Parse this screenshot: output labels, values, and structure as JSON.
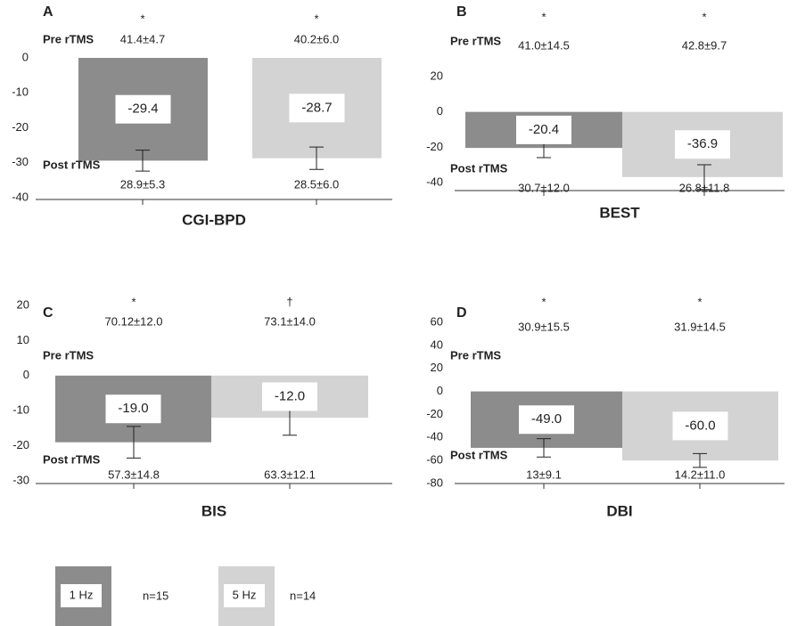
{
  "chart_data": [
    {
      "type": "bar",
      "panel": "A",
      "xlabel": "CGI-BPD",
      "values": [
        -29.4,
        -28.7
      ],
      "value_labels": [
        "-29.4",
        "-28.7"
      ],
      "errors": [
        3,
        3.2
      ],
      "ylim": [
        -40,
        0
      ],
      "yticks": [
        0,
        -10,
        -20,
        -30,
        -40
      ],
      "markers": [
        "*",
        "*"
      ],
      "pre_label": "Pre rTMS",
      "pre_values": [
        "41.4±4.7",
        "40.2±6.0"
      ],
      "post_label": "Post rTMS",
      "post_values": [
        "28.9±5.3",
        "28.5±6.0"
      ]
    },
    {
      "type": "bar",
      "panel": "B",
      "xlabel": "BEST",
      "values": [
        -20.4,
        -36.9
      ],
      "value_labels": [
        "-20.4",
        "-36.9"
      ],
      "errors": [
        5.5,
        7
      ],
      "ylim": [
        -40,
        20
      ],
      "yticks": [
        20,
        0,
        -20,
        -40
      ],
      "markers": [
        "*",
        "*"
      ],
      "pre_label": "Pre rTMS",
      "pre_values": [
        "41.0±14.5",
        "42.8±9.7"
      ],
      "post_label": "Post rTMS",
      "post_values": [
        "30.7±12.0",
        "26.8±11.8"
      ]
    },
    {
      "type": "bar",
      "panel": "C",
      "xlabel": "BIS",
      "values": [
        -19.0,
        -12.0
      ],
      "value_labels": [
        "-19.0",
        "-12.0"
      ],
      "errors": [
        4.5,
        5
      ],
      "ylim": [
        -30,
        20
      ],
      "yticks": [
        20,
        10,
        0,
        -10,
        -20,
        -30
      ],
      "markers": [
        "*",
        "†"
      ],
      "pre_label": "Pre rTMS",
      "pre_values": [
        "70.12±12.0",
        "73.1±14.0"
      ],
      "post_label": "Post rTMS",
      "post_values": [
        "57.3±14.8",
        "63.3±12.1"
      ]
    },
    {
      "type": "bar",
      "panel": "D",
      "xlabel": "DBI",
      "values": [
        -49.0,
        -60.0
      ],
      "value_labels": [
        "-49.0",
        "-60.0"
      ],
      "errors": [
        8,
        6
      ],
      "ylim": [
        -80,
        60
      ],
      "yticks": [
        60,
        40,
        20,
        0,
        -20,
        -40,
        -60,
        -80
      ],
      "markers": [
        "*",
        "*"
      ],
      "pre_label": "Pre rTMS",
      "pre_values": [
        "30.9±15.5",
        "31.9±14.5"
      ],
      "post_label": "Post rTMS",
      "post_values": [
        "13±9.1",
        "14.2±11.0"
      ]
    }
  ],
  "legend": {
    "items": [
      {
        "label": "1 Hz",
        "note": "n=15",
        "color": "#8c8c8c"
      },
      {
        "label": "5 Hz",
        "note": "n=14",
        "color": "#d3d3d3"
      }
    ]
  }
}
